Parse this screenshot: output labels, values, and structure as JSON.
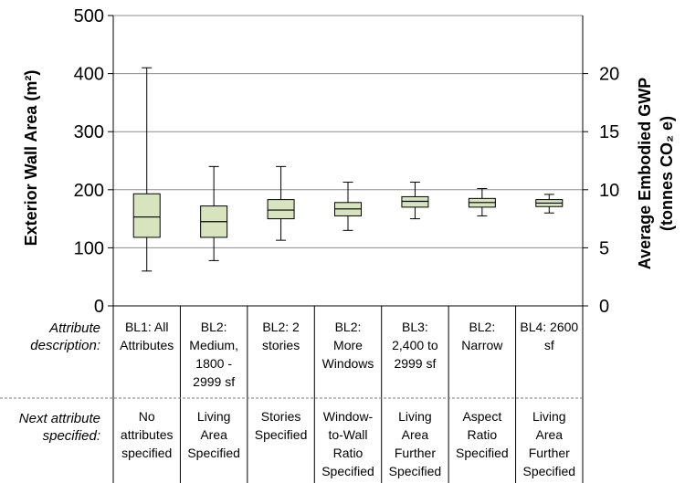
{
  "chart_data": {
    "type": "box",
    "y_left": {
      "label": "Exterior Wall Area (m²)",
      "ticks": [
        0,
        100,
        200,
        300,
        400,
        500
      ],
      "range": [
        0,
        500
      ]
    },
    "y_right": {
      "label_line1": "Average Embodied  GWP",
      "label_line2": "(tonnes CO₂ e)",
      "ticks": [
        0,
        5,
        10,
        15,
        20
      ],
      "range": [
        0,
        25
      ]
    },
    "grid": "horizontal",
    "boxes": [
      {
        "min": 60,
        "q1": 118,
        "median": 153,
        "q3": 193,
        "max": 410
      },
      {
        "min": 78,
        "q1": 118,
        "median": 145,
        "q3": 172,
        "max": 240
      },
      {
        "min": 113,
        "q1": 150,
        "median": 165,
        "q3": 183,
        "max": 240
      },
      {
        "min": 130,
        "q1": 155,
        "median": 167,
        "q3": 178,
        "max": 213
      },
      {
        "min": 150,
        "q1": 170,
        "median": 180,
        "q3": 188,
        "max": 213
      },
      {
        "min": 155,
        "q1": 170,
        "median": 178,
        "q3": 185,
        "max": 202
      },
      {
        "min": 160,
        "q1": 171,
        "median": 177,
        "q3": 183,
        "max": 192
      }
    ],
    "row_labels": {
      "attribute": [
        "Attribute",
        "description:"
      ],
      "next": [
        "Next attribute",
        "specified:"
      ]
    },
    "attribute_description": [
      [
        "BL1: All",
        "Attributes"
      ],
      [
        "BL2:",
        "Medium,",
        "1800 -",
        "2999 sf"
      ],
      [
        "BL2: 2",
        "stories"
      ],
      [
        "BL2:",
        "More",
        "Windows"
      ],
      [
        "BL3:",
        "2,400 to",
        "2999 sf"
      ],
      [
        "BL2:",
        "Narrow"
      ],
      [
        "BL4: 2600",
        "sf"
      ]
    ],
    "next_attribute": [
      [
        "No",
        "attributes",
        "specified"
      ],
      [
        "Living",
        "Area",
        "Specified"
      ],
      [
        "Stories",
        "Specified"
      ],
      [
        "Window-",
        "to-Wall",
        "Ratio",
        "Specified"
      ],
      [
        "Living",
        "Area",
        "Further",
        "Specified"
      ],
      [
        "Aspect",
        "Ratio",
        "Specified"
      ],
      [
        "Living",
        "Area",
        "Further",
        "Specified"
      ]
    ],
    "colors": {
      "box_fill": "#d7e4bd",
      "line": "#000000",
      "grid": "#8c8c8c"
    }
  }
}
